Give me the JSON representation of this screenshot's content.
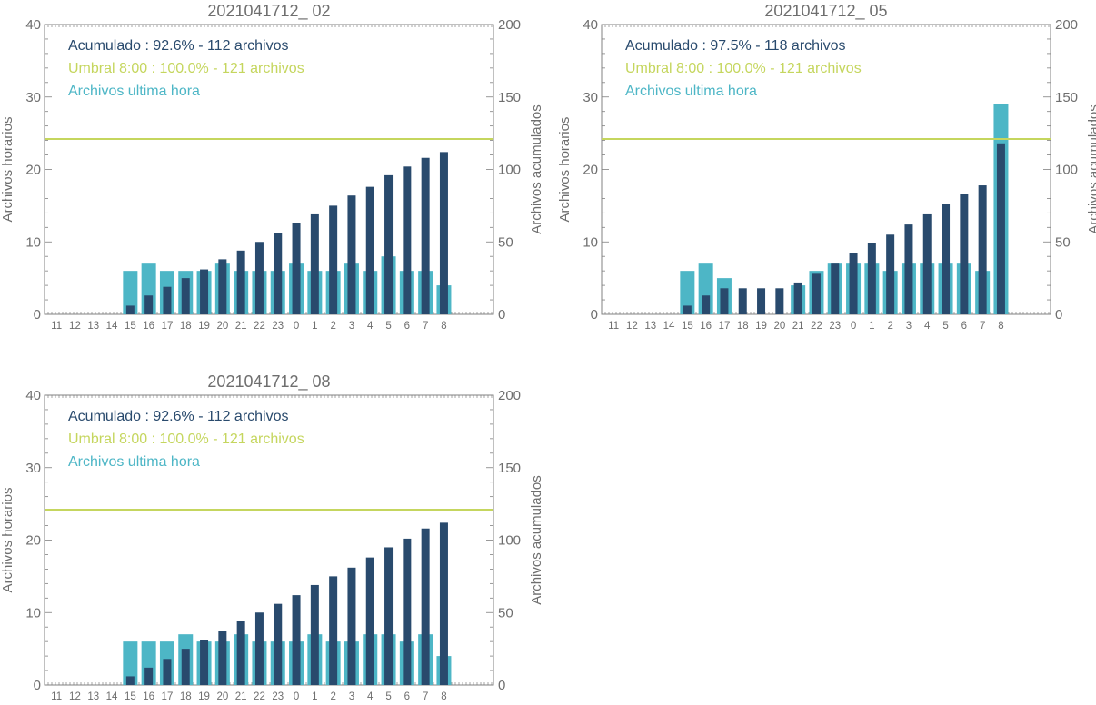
{
  "colors": {
    "hourly": "#4db6c6",
    "cumulative": "#294a6d",
    "threshold": "#c5d65e",
    "axis": "#808080",
    "text": "#6e6e6e"
  },
  "chart_data": [
    {
      "type": "bar",
      "title": "2021041712_ 02",
      "ylabel_left": "Archivos horarios",
      "ylabel_right": "Archivos acumulados",
      "ylim_left": [
        0,
        40
      ],
      "ylim_right": [
        0,
        200
      ],
      "yticks_left": [
        "0",
        "10",
        "20",
        "30",
        "40"
      ],
      "yticks_right": [
        "0",
        "50",
        "100",
        "150",
        "200"
      ],
      "categories": [
        "11",
        "12",
        "13",
        "14",
        "15",
        "16",
        "17",
        "18",
        "19",
        "20",
        "21",
        "22",
        "23",
        "0",
        "1",
        "2",
        "3",
        "4",
        "5",
        "6",
        "7",
        "8"
      ],
      "legend": [
        {
          "key": "cumulative",
          "text": "Acumulado : 92.6% - 112 archivos"
        },
        {
          "key": "threshold",
          "text": "Umbral 8:00 : 100.0% - 121 archivos"
        },
        {
          "key": "hourly",
          "text": "Archivos ultima hora"
        }
      ],
      "threshold": 121,
      "series": [
        {
          "name": "Archivos ultima hora",
          "axis": "left",
          "values": [
            0,
            0,
            0,
            0,
            6,
            7,
            6,
            6,
            6,
            7,
            6,
            6,
            6,
            7,
            6,
            6,
            7,
            6,
            8,
            6,
            6,
            4
          ]
        },
        {
          "name": "Acumulado",
          "axis": "right",
          "values": [
            0,
            0,
            0,
            0,
            6,
            13,
            19,
            25,
            31,
            38,
            44,
            50,
            56,
            63,
            69,
            75,
            82,
            88,
            96,
            102,
            108,
            112
          ]
        }
      ]
    },
    {
      "type": "bar",
      "title": "2021041712_ 05",
      "ylabel_left": "Archivos horarios",
      "ylabel_right": "Archivos acumulados",
      "ylim_left": [
        0,
        40
      ],
      "ylim_right": [
        0,
        200
      ],
      "yticks_left": [
        "0",
        "10",
        "20",
        "30",
        "40"
      ],
      "yticks_right": [
        "0",
        "50",
        "100",
        "150",
        "200"
      ],
      "categories": [
        "11",
        "12",
        "13",
        "14",
        "15",
        "16",
        "17",
        "18",
        "19",
        "20",
        "21",
        "22",
        "23",
        "0",
        "1",
        "2",
        "3",
        "4",
        "5",
        "6",
        "7",
        "8"
      ],
      "legend": [
        {
          "key": "cumulative",
          "text": "Acumulado : 97.5% - 118 archivos"
        },
        {
          "key": "threshold",
          "text": "Umbral 8:00 : 100.0% - 121 archivos"
        },
        {
          "key": "hourly",
          "text": "Archivos ultima hora"
        }
      ],
      "threshold": 121,
      "series": [
        {
          "name": "Archivos ultima hora",
          "axis": "left",
          "values": [
            0,
            0,
            0,
            0,
            6,
            7,
            5,
            0,
            0,
            0,
            4,
            6,
            7,
            7,
            7,
            6,
            7,
            7,
            7,
            7,
            6,
            29
          ]
        },
        {
          "name": "Acumulado",
          "axis": "right",
          "values": [
            0,
            0,
            0,
            0,
            6,
            13,
            18,
            18,
            18,
            18,
            22,
            28,
            35,
            42,
            49,
            55,
            62,
            69,
            76,
            83,
            89,
            118
          ]
        }
      ]
    },
    {
      "type": "bar",
      "title": "2021041712_ 08",
      "ylabel_left": "Archivos horarios",
      "ylabel_right": "Archivos acumulados",
      "ylim_left": [
        0,
        40
      ],
      "ylim_right": [
        0,
        200
      ],
      "yticks_left": [
        "0",
        "10",
        "20",
        "30",
        "40"
      ],
      "yticks_right": [
        "0",
        "50",
        "100",
        "150",
        "200"
      ],
      "categories": [
        "11",
        "12",
        "13",
        "14",
        "15",
        "16",
        "17",
        "18",
        "19",
        "20",
        "21",
        "22",
        "23",
        "0",
        "1",
        "2",
        "3",
        "4",
        "5",
        "6",
        "7",
        "8"
      ],
      "legend": [
        {
          "key": "cumulative",
          "text": "Acumulado : 92.6% - 112 archivos"
        },
        {
          "key": "threshold",
          "text": "Umbral 8:00 : 100.0% - 121 archivos"
        },
        {
          "key": "hourly",
          "text": "Archivos ultima hora"
        }
      ],
      "threshold": 121,
      "series": [
        {
          "name": "Archivos ultima hora",
          "axis": "left",
          "values": [
            0,
            0,
            0,
            0,
            6,
            6,
            6,
            7,
            6,
            6,
            7,
            6,
            6,
            6,
            7,
            6,
            6,
            7,
            7,
            6,
            7,
            4
          ]
        },
        {
          "name": "Acumulado",
          "axis": "right",
          "values": [
            0,
            0,
            0,
            0,
            6,
            12,
            18,
            25,
            31,
            37,
            44,
            50,
            56,
            62,
            69,
            75,
            81,
            88,
            95,
            101,
            108,
            112
          ]
        }
      ]
    }
  ]
}
